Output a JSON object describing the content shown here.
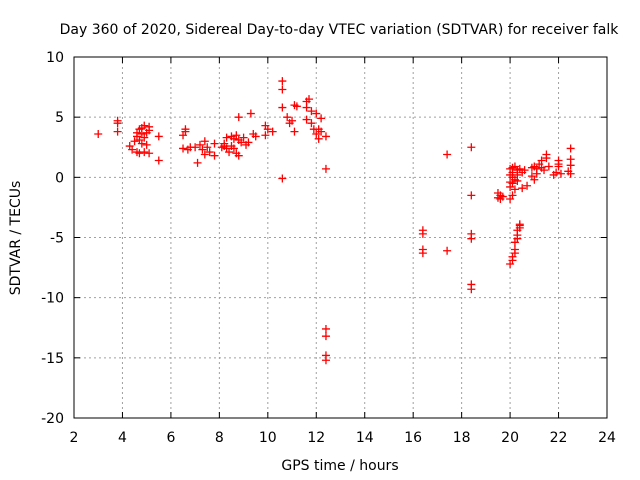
{
  "chart_data": {
    "type": "scatter",
    "title": "Day 360 of 2020, Sidereal Day-to-day VTEC variation (SDTVAR) for receiver falk",
    "xlabel": "GPS time / hours",
    "ylabel": "SDTVAR / TECUs",
    "xlim": [
      2,
      24
    ],
    "ylim": [
      -20,
      10
    ],
    "x_ticks": [
      2,
      4,
      6,
      8,
      10,
      12,
      14,
      16,
      18,
      20,
      22,
      24
    ],
    "y_ticks": [
      -20,
      -15,
      -10,
      -5,
      0,
      5,
      10
    ],
    "grid": true,
    "marker": "+",
    "color": "#ff0000",
    "series": [
      {
        "name": "SDTVAR",
        "points": [
          [
            3.0,
            3.6
          ],
          [
            3.8,
            4.7
          ],
          [
            3.8,
            4.5
          ],
          [
            3.8,
            3.8
          ],
          [
            4.3,
            2.6
          ],
          [
            4.4,
            2.3
          ],
          [
            4.5,
            3.0
          ],
          [
            4.6,
            3.4
          ],
          [
            4.6,
            3.7
          ],
          [
            4.6,
            2.1
          ],
          [
            4.7,
            4.0
          ],
          [
            4.7,
            3.1
          ],
          [
            4.7,
            2.0
          ],
          [
            4.8,
            4.1
          ],
          [
            4.8,
            3.6
          ],
          [
            4.8,
            2.8
          ],
          [
            4.9,
            4.3
          ],
          [
            4.9,
            3.3
          ],
          [
            4.9,
            2.1
          ],
          [
            5.0,
            3.7
          ],
          [
            5.0,
            2.7
          ],
          [
            5.1,
            4.2
          ],
          [
            5.1,
            3.9
          ],
          [
            5.1,
            2.0
          ],
          [
            5.5,
            3.4
          ],
          [
            5.5,
            1.4
          ],
          [
            6.5,
            3.5
          ],
          [
            6.5,
            2.4
          ],
          [
            6.6,
            3.8
          ],
          [
            6.6,
            4.0
          ],
          [
            6.7,
            2.3
          ],
          [
            6.8,
            2.5
          ],
          [
            7.0,
            2.5
          ],
          [
            7.1,
            1.2
          ],
          [
            7.2,
            2.7
          ],
          [
            7.3,
            2.3
          ],
          [
            7.4,
            3.0
          ],
          [
            7.4,
            1.9
          ],
          [
            7.5,
            2.5
          ],
          [
            7.6,
            2.1
          ],
          [
            7.8,
            2.8
          ],
          [
            7.8,
            1.8
          ],
          [
            8.1,
            2.5
          ],
          [
            8.2,
            2.8
          ],
          [
            8.2,
            2.6
          ],
          [
            8.3,
            3.3
          ],
          [
            8.3,
            2.4
          ],
          [
            8.4,
            2.1
          ],
          [
            8.5,
            3.4
          ],
          [
            8.5,
            2.6
          ],
          [
            8.6,
            3.2
          ],
          [
            8.6,
            2.4
          ],
          [
            8.7,
            3.5
          ],
          [
            8.7,
            2.0
          ],
          [
            8.8,
            5.0
          ],
          [
            8.8,
            3.1
          ],
          [
            8.8,
            1.8
          ],
          [
            8.9,
            2.9
          ],
          [
            9.0,
            3.3
          ],
          [
            9.1,
            2.7
          ],
          [
            9.2,
            2.9
          ],
          [
            9.3,
            5.3
          ],
          [
            9.4,
            3.6
          ],
          [
            9.5,
            3.4
          ],
          [
            9.9,
            4.3
          ],
          [
            9.9,
            3.5
          ],
          [
            10.0,
            4.0
          ],
          [
            10.2,
            3.8
          ],
          [
            10.6,
            8.0
          ],
          [
            10.6,
            7.3
          ],
          [
            10.6,
            5.8
          ],
          [
            10.6,
            -0.1
          ],
          [
            10.8,
            5.0
          ],
          [
            10.9,
            4.5
          ],
          [
            11.0,
            4.7
          ],
          [
            11.1,
            6.0
          ],
          [
            11.1,
            3.8
          ],
          [
            11.2,
            5.9
          ],
          [
            11.6,
            6.3
          ],
          [
            11.6,
            5.8
          ],
          [
            11.6,
            4.8
          ],
          [
            11.7,
            6.5
          ],
          [
            11.8,
            5.5
          ],
          [
            11.8,
            4.5
          ],
          [
            11.9,
            4.0
          ],
          [
            12.0,
            5.3
          ],
          [
            12.0,
            3.6
          ],
          [
            12.1,
            4.0
          ],
          [
            12.1,
            3.2
          ],
          [
            12.2,
            4.9
          ],
          [
            12.2,
            3.8
          ],
          [
            12.4,
            3.4
          ],
          [
            12.4,
            0.7
          ],
          [
            12.4,
            -12.6
          ],
          [
            12.4,
            -13.2
          ],
          [
            12.4,
            -14.8
          ],
          [
            12.4,
            -15.2
          ],
          [
            16.4,
            -4.7
          ],
          [
            16.4,
            -4.4
          ],
          [
            16.4,
            -6.0
          ],
          [
            16.4,
            -6.3
          ],
          [
            17.4,
            1.9
          ],
          [
            17.4,
            -6.1
          ],
          [
            18.4,
            2.5
          ],
          [
            18.4,
            -1.5
          ],
          [
            18.4,
            -4.7
          ],
          [
            18.4,
            -5.1
          ],
          [
            18.4,
            -8.9
          ],
          [
            18.4,
            -9.3
          ],
          [
            19.5,
            -1.3
          ],
          [
            19.5,
            -1.7
          ],
          [
            19.6,
            -1.5
          ],
          [
            19.6,
            -1.8
          ],
          [
            19.7,
            -1.6
          ],
          [
            20.0,
            0.7
          ],
          [
            20.0,
            0.2
          ],
          [
            20.0,
            -0.4
          ],
          [
            20.0,
            -0.8
          ],
          [
            20.0,
            -1.8
          ],
          [
            20.0,
            -7.2
          ],
          [
            20.1,
            0.8
          ],
          [
            20.1,
            0.4
          ],
          [
            20.1,
            0.0
          ],
          [
            20.1,
            -0.5
          ],
          [
            20.1,
            -1.5
          ],
          [
            20.1,
            -6.6
          ],
          [
            20.1,
            -6.9
          ],
          [
            20.2,
            0.9
          ],
          [
            20.2,
            -0.2
          ],
          [
            20.2,
            -1.0
          ],
          [
            20.2,
            -6.0
          ],
          [
            20.2,
            -5.4
          ],
          [
            20.2,
            -6.3
          ],
          [
            20.3,
            0.6
          ],
          [
            20.3,
            0.2
          ],
          [
            20.3,
            -0.3
          ],
          [
            20.3,
            -4.8
          ],
          [
            20.3,
            -5.1
          ],
          [
            20.3,
            -4.4
          ],
          [
            20.4,
            0.7
          ],
          [
            20.4,
            -4.2
          ],
          [
            20.4,
            -4.0
          ],
          [
            20.4,
            -3.9
          ],
          [
            20.5,
            0.4
          ],
          [
            20.5,
            -0.9
          ],
          [
            20.6,
            0.6
          ],
          [
            20.7,
            -0.7
          ],
          [
            20.9,
            0.8
          ],
          [
            20.9,
            0.1
          ],
          [
            21.0,
            -0.2
          ],
          [
            21.0,
            0.9
          ],
          [
            21.1,
            0.7
          ],
          [
            21.1,
            0.3
          ],
          [
            21.2,
            1.1
          ],
          [
            21.3,
            1.4
          ],
          [
            21.3,
            0.8
          ],
          [
            21.4,
            0.6
          ],
          [
            21.5,
            1.6
          ],
          [
            21.5,
            1.9
          ],
          [
            21.6,
            0.9
          ],
          [
            21.8,
            0.2
          ],
          [
            21.9,
            0.4
          ],
          [
            22.0,
            1.4
          ],
          [
            22.0,
            1.1
          ],
          [
            22.0,
            0.9
          ],
          [
            22.1,
            0.3
          ],
          [
            22.4,
            0.5
          ],
          [
            22.5,
            0.3
          ],
          [
            22.5,
            1.0
          ],
          [
            22.5,
            1.5
          ],
          [
            22.5,
            2.4
          ]
        ]
      }
    ]
  }
}
